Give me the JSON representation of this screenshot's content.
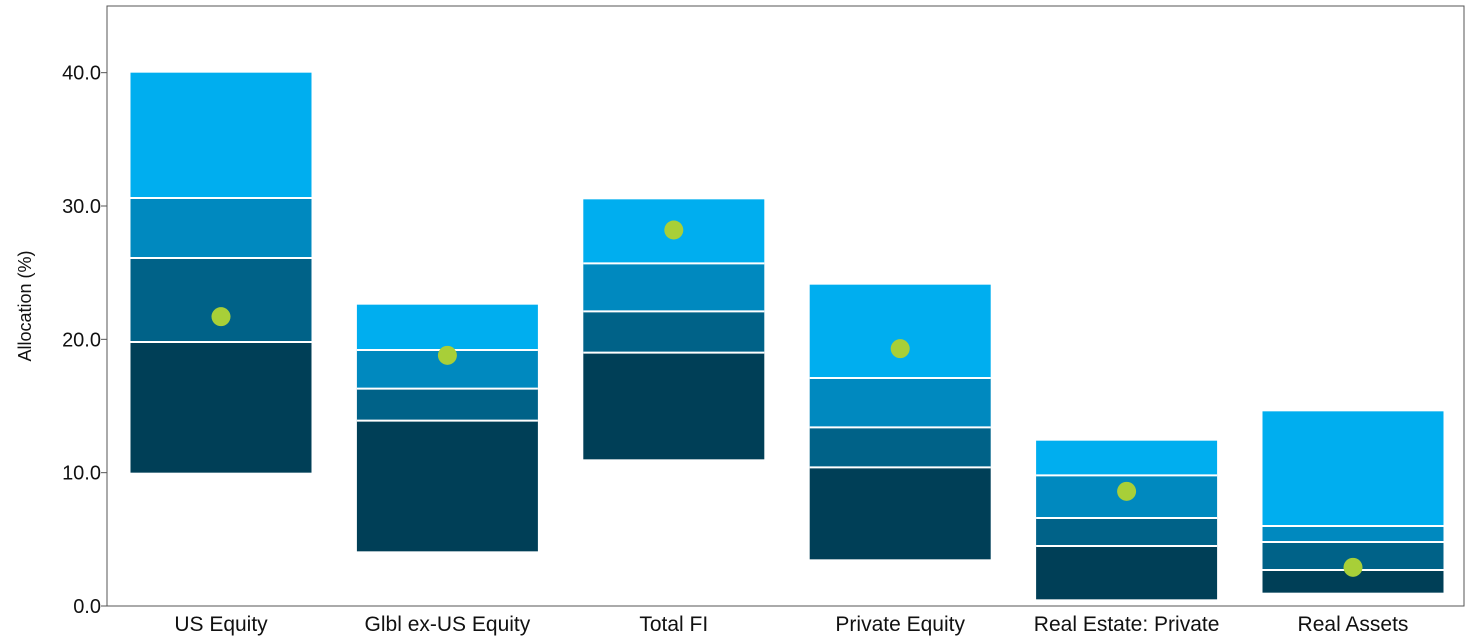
{
  "chart_data": {
    "type": "floating-bar-percentile",
    "title": "",
    "xlabel": "",
    "ylabel": "Allocation (%)",
    "ylim": [
      0,
      45
    ],
    "yticks": [
      "0.0",
      "10.0",
      "20.0",
      "30.0",
      "40.0"
    ],
    "grid": false,
    "categories": [
      "US Equity",
      "Glbl ex-US Equity",
      "Total FI",
      "Private Equity",
      "Real Estate: Private",
      "Real Assets"
    ],
    "bands": [
      {
        "low": 10.0,
        "p25": 19.8,
        "median": 26.1,
        "p75": 30.6,
        "high": 40.0,
        "point": 21.7
      },
      {
        "low": 4.1,
        "p25": 13.9,
        "median": 16.3,
        "p75": 19.2,
        "high": 22.6,
        "point": 18.8
      },
      {
        "low": 11.0,
        "p25": 19.0,
        "median": 22.1,
        "p75": 25.7,
        "high": 30.5,
        "point": 28.2
      },
      {
        "low": 3.5,
        "p25": 10.4,
        "median": 13.4,
        "p75": 17.1,
        "high": 24.1,
        "point": 19.3
      },
      {
        "low": 0.5,
        "p25": 4.5,
        "median": 6.6,
        "p75": 9.8,
        "high": 12.4,
        "point": 8.6
      },
      {
        "low": 1.0,
        "p25": 2.7,
        "median": 4.8,
        "p75": 6.0,
        "high": 14.6,
        "point": 2.9
      }
    ],
    "band_colors": [
      "#003f57",
      "#006288",
      "#0089bf",
      "#00aeef"
    ],
    "point_color": "#a8cf38"
  }
}
